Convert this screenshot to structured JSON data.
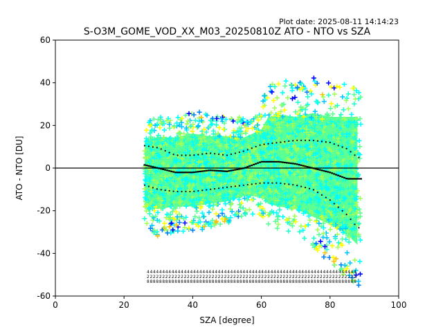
{
  "chart_data": {
    "type": "scatter",
    "title": "S-O3M_GOME_VOD_XX_M03_20250810Z ATO - NTO vs SZA",
    "plot_date": "Plot date: 2025-08-11 14:14:23",
    "xlabel": "SZA [degree]",
    "ylabel": "ATO - NTO [DU]",
    "xlim": [
      0,
      100
    ],
    "ylim": [
      -60,
      60
    ],
    "xticks": [
      "0",
      "20",
      "40",
      "60",
      "80",
      "100"
    ],
    "yticks": [
      "-60",
      "-40",
      "-20",
      "0",
      "20",
      "40",
      "60"
    ],
    "grid": false,
    "reference_line_y": 0,
    "colors": {
      "scatter_palette": [
        "#0000ff",
        "#0080ff",
        "#00c8ff",
        "#00ffff",
        "#20ffcc",
        "#5cff94",
        "#a0ff5a",
        "#ffff00",
        "#ffc000"
      ],
      "main_band": "#5cff94",
      "mean_line": "#000000"
    },
    "x_range_of_data": [
      26,
      89
    ],
    "mean_curve": {
      "x": [
        26,
        30,
        35,
        40,
        45,
        50,
        55,
        60,
        65,
        70,
        75,
        80,
        85,
        88
      ],
      "y": [
        1.5,
        0,
        -2,
        -2,
        -1,
        -1.5,
        0,
        3,
        3,
        2,
        0,
        -2,
        -5,
        -5
      ]
    },
    "upper_sigma_curve": {
      "x": [
        26,
        30,
        35,
        40,
        45,
        50,
        55,
        60,
        65,
        70,
        75,
        80,
        85,
        88
      ],
      "y": [
        10.5,
        9.5,
        6,
        6,
        7,
        6,
        8,
        11,
        12,
        13,
        13,
        12,
        9,
        5
      ]
    },
    "lower_sigma_curve": {
      "x": [
        26,
        30,
        35,
        40,
        45,
        50,
        55,
        60,
        65,
        70,
        75,
        80,
        85,
        88
      ],
      "y": [
        -8,
        -10,
        -11,
        -11,
        -10,
        -9,
        -8,
        -7,
        -7,
        -8,
        -10,
        -15,
        -22,
        -28
      ]
    },
    "envelope": {
      "x": [
        26,
        30,
        35,
        40,
        45,
        50,
        55,
        60,
        62,
        65,
        70,
        75,
        80,
        85,
        88
      ],
      "upper": [
        22,
        24,
        24,
        27,
        25,
        25,
        24,
        30,
        40,
        42,
        40,
        43,
        40,
        40,
        40
      ],
      "lower": [
        -30,
        -32,
        -30,
        -30,
        -28,
        -26,
        -22,
        -22,
        -28,
        -30,
        -32,
        -38,
        -44,
        -52,
        -60
      ]
    },
    "annotation_rows": [
      "4",
      "2",
      "8"
    ]
  }
}
